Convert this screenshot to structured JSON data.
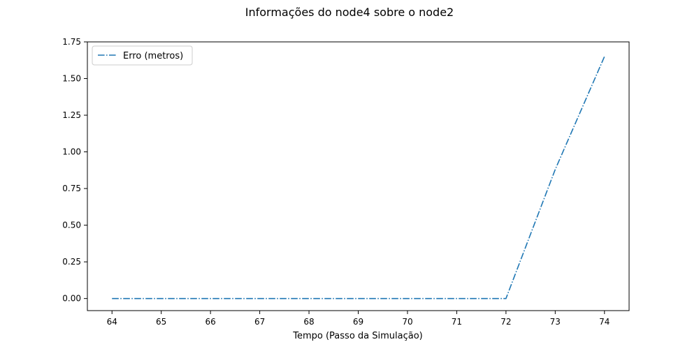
{
  "chart_data": {
    "type": "line",
    "title": "Informações do node4 sobre o node2",
    "xlabel": "Tempo (Passo da Simulação)",
    "ylabel": "",
    "xlim": [
      63.5,
      74.5
    ],
    "ylim": [
      -0.0825,
      1.75
    ],
    "xticks": [
      64,
      65,
      66,
      67,
      68,
      69,
      70,
      71,
      72,
      73,
      74
    ],
    "yticks": [
      "0.00",
      "0.25",
      "0.50",
      "0.75",
      "1.00",
      "1.25",
      "1.50",
      "1.75"
    ],
    "legend_position": "top-left",
    "grid": false,
    "series": [
      {
        "name": "Erro (metros)",
        "color": "#1f77b4",
        "line_style": "dash-dot",
        "x": [
          64,
          65,
          66,
          67,
          68,
          69,
          70,
          71,
          72,
          73,
          74
        ],
        "y": [
          0,
          0,
          0,
          0,
          0,
          0,
          0,
          0,
          0,
          0.88,
          1.65
        ]
      }
    ]
  }
}
